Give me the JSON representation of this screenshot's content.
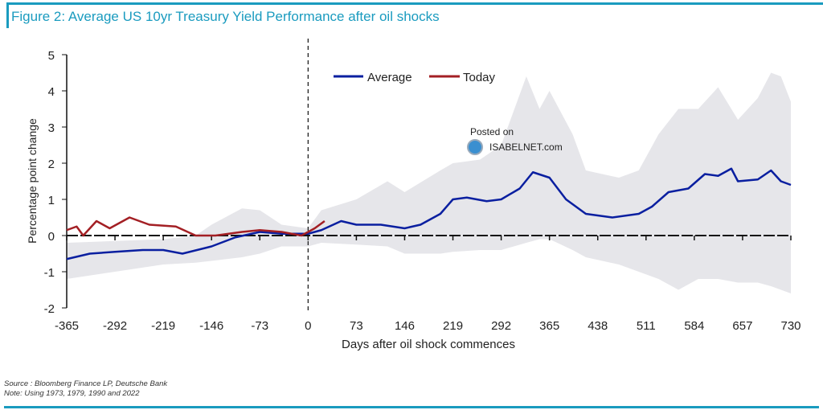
{
  "title": "Figure 2: Average US 10yr Treasury Yield Performance after oil shocks",
  "footer": {
    "source": "Source : Bloomberg Finance LP, Deutsche Bank",
    "note": "Note: Using 1973, 1979, 1990 and 2022"
  },
  "watermark": {
    "line1": "Posted on",
    "line2": "ISABELNET.com"
  },
  "chart_data": {
    "type": "line",
    "title": "Figure 2: Average US 10yr Treasury Yield Performance after oil shocks",
    "xlabel": "Days after oil shock commences",
    "ylabel": "Percentage point change",
    "xlim": [
      -365,
      730
    ],
    "ylim": [
      -2,
      5
    ],
    "xticks": [
      -365,
      -292,
      -219,
      -146,
      -73,
      0,
      73,
      146,
      219,
      292,
      365,
      438,
      511,
      584,
      657,
      730
    ],
    "yticks": [
      -2,
      -1,
      0,
      1,
      2,
      3,
      4,
      5
    ],
    "grid": false,
    "legend": "top-center",
    "vertical_marker_x": 0,
    "colors": {
      "Average": "#0a1fa0",
      "Today": "#a31f24",
      "range": "#e6e6ea"
    },
    "range_band": {
      "x": [
        -365,
        -292,
        -219,
        -170,
        -146,
        -100,
        -73,
        -40,
        0,
        20,
        73,
        120,
        146,
        200,
        219,
        260,
        292,
        330,
        350,
        365,
        400,
        420,
        470,
        500,
        530,
        560,
        590,
        620,
        650,
        680,
        700,
        715,
        730
      ],
      "upper": [
        -0.2,
        -0.15,
        -0.1,
        0.0,
        0.3,
        0.75,
        0.7,
        0.3,
        0.2,
        0.7,
        1.0,
        1.5,
        1.2,
        1.8,
        2.0,
        2.1,
        2.5,
        4.4,
        3.5,
        4.0,
        2.8,
        1.8,
        1.6,
        1.8,
        2.8,
        3.5,
        3.5,
        4.1,
        3.2,
        3.8,
        4.5,
        4.4,
        3.7
      ],
      "lower": [
        -1.2,
        -1.0,
        -0.8,
        -0.75,
        -0.7,
        -0.6,
        -0.5,
        -0.3,
        -0.3,
        -0.2,
        -0.25,
        -0.3,
        -0.5,
        -0.5,
        -0.45,
        -0.4,
        -0.4,
        -0.2,
        -0.1,
        -0.1,
        -0.4,
        -0.6,
        -0.8,
        -1.0,
        -1.2,
        -1.5,
        -1.2,
        -1.2,
        -1.3,
        -1.3,
        -1.4,
        -1.5,
        -1.6
      ]
    },
    "series": [
      {
        "name": "Average",
        "x": [
          -365,
          -330,
          -292,
          -250,
          -219,
          -190,
          -146,
          -110,
          -73,
          -40,
          0,
          20,
          50,
          73,
          110,
          146,
          170,
          200,
          219,
          240,
          270,
          292,
          320,
          340,
          365,
          390,
          420,
          460,
          500,
          520,
          545,
          575,
          600,
          620,
          640,
          650,
          680,
          700,
          715,
          730
        ],
        "y": [
          -0.65,
          -0.5,
          -0.45,
          -0.4,
          -0.4,
          -0.5,
          -0.3,
          -0.05,
          0.1,
          0.05,
          0.05,
          0.15,
          0.4,
          0.3,
          0.3,
          0.2,
          0.3,
          0.6,
          1.0,
          1.05,
          0.95,
          1.0,
          1.3,
          1.75,
          1.6,
          1.0,
          0.6,
          0.5,
          0.6,
          0.8,
          1.2,
          1.3,
          1.7,
          1.65,
          1.85,
          1.5,
          1.55,
          1.8,
          1.5,
          1.4
        ]
      },
      {
        "name": "Today",
        "x": [
          -365,
          -350,
          -340,
          -320,
          -300,
          -270,
          -240,
          -200,
          -170,
          -140,
          -100,
          -73,
          -40,
          -10,
          10,
          25
        ],
        "y": [
          0.15,
          0.25,
          0.0,
          0.4,
          0.2,
          0.5,
          0.3,
          0.25,
          0.0,
          0.0,
          0.1,
          0.15,
          0.1,
          0.0,
          0.2,
          0.4
        ]
      }
    ]
  }
}
